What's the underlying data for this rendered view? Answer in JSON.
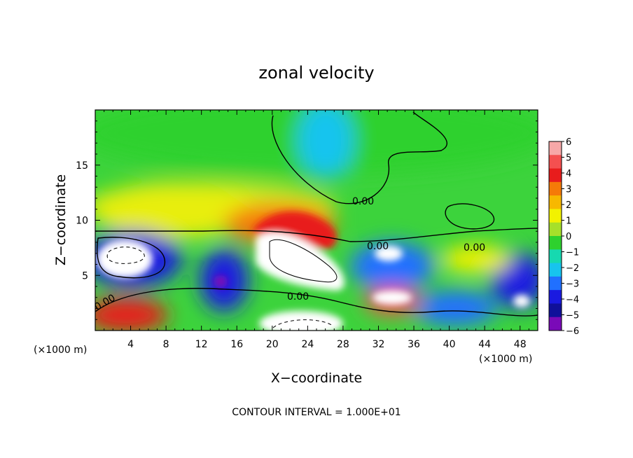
{
  "chart_data": {
    "type": "heatmap",
    "title": "zonal velocity",
    "xlabel": "X−coordinate",
    "ylabel": "Z−coordinate",
    "x_unit_left": "(×1000 m)",
    "x_unit_right": "(×1000 m)",
    "xlim": [
      0,
      50
    ],
    "ylim": [
      0,
      20
    ],
    "x_ticks": [
      4,
      8,
      12,
      16,
      20,
      24,
      28,
      32,
      36,
      40,
      44,
      48
    ],
    "y_ticks": [
      5,
      10,
      15
    ],
    "colorbar": {
      "ticks": [
        6,
        5,
        4,
        3,
        2,
        1,
        0,
        -1,
        -2,
        -3,
        -4,
        -5,
        -6
      ],
      "tick_labels": [
        "6",
        "5",
        "4",
        "3",
        "2",
        "1",
        "0",
        "−1",
        "−2",
        "−3",
        "−4",
        "−5",
        "−6"
      ],
      "colors": [
        "#f7a8a8",
        "#f45050",
        "#e81c1c",
        "#f57a08",
        "#f7b800",
        "#f2f200",
        "#a6e02a",
        "#2ed12e",
        "#16d9b0",
        "#17c4ee",
        "#2070ff",
        "#1a1ae0",
        "#10109a",
        "#7a0ab8"
      ]
    },
    "contour_labels": [
      "0.00",
      "0.00",
      "0.00",
      "0.00",
      "0.00"
    ],
    "footer": "CONTOUR INTERVAL = 1.000E+01"
  }
}
